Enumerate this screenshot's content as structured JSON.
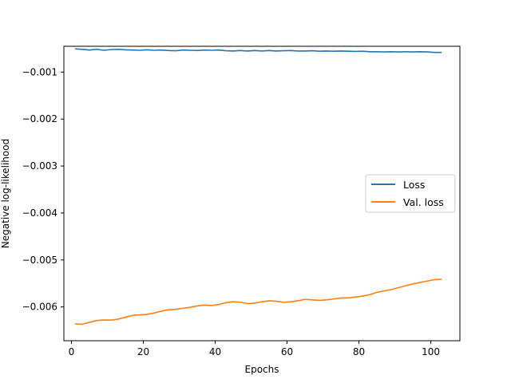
{
  "chart_data": {
    "type": "line",
    "title": "",
    "xlabel": "Epochs",
    "ylabel": "Negative log-likelihood",
    "xlim": [
      -2.1,
      108.1
    ],
    "ylim": [
      -0.00672,
      -0.00045
    ],
    "xticks": [
      0,
      20,
      40,
      60,
      80,
      100
    ],
    "xtick_labels": [
      "0",
      "20",
      "40",
      "60",
      "80",
      "100"
    ],
    "yticks": [
      -0.001,
      -0.002,
      -0.003,
      -0.004,
      -0.005,
      -0.006
    ],
    "ytick_labels": [
      "−0.001",
      "−0.002",
      "−0.003",
      "−0.004",
      "−0.005",
      "−0.006"
    ],
    "grid": false,
    "legend_position": "center-right",
    "series": [
      {
        "name": "Loss",
        "color": "#1f77b4",
        "x": [
          1,
          3,
          5,
          7,
          9,
          11,
          13,
          15,
          17,
          19,
          21,
          23,
          25,
          27,
          29,
          31,
          33,
          35,
          37,
          39,
          41,
          43,
          45,
          47,
          49,
          51,
          53,
          55,
          57,
          59,
          61,
          63,
          65,
          67,
          69,
          71,
          73,
          75,
          77,
          79,
          81,
          83,
          85,
          87,
          89,
          91,
          93,
          95,
          97,
          99,
          101,
          103
        ],
        "y": [
          -0.000505,
          -0.000515,
          -0.00053,
          -0.000515,
          -0.000535,
          -0.00052,
          -0.000515,
          -0.000525,
          -0.00053,
          -0.000535,
          -0.000525,
          -0.000535,
          -0.00053,
          -0.00054,
          -0.000545,
          -0.00053,
          -0.000535,
          -0.00054,
          -0.00053,
          -0.000535,
          -0.00053,
          -0.000545,
          -0.00055,
          -0.00054,
          -0.00055,
          -0.00054,
          -0.00055,
          -0.00054,
          -0.00055,
          -0.000545,
          -0.00054,
          -0.00055,
          -0.00055,
          -0.000545,
          -0.000555,
          -0.00055,
          -0.000555,
          -0.00055,
          -0.000555,
          -0.00056,
          -0.000555,
          -0.000565,
          -0.000565,
          -0.00057,
          -0.000565,
          -0.00057,
          -0.000565,
          -0.00057,
          -0.000565,
          -0.00057,
          -0.00058,
          -0.00058
        ]
      },
      {
        "name": "Val. loss",
        "color": "#ff7f0e",
        "x": [
          1,
          3,
          5,
          7,
          9,
          11,
          13,
          15,
          17,
          19,
          21,
          23,
          25,
          27,
          29,
          31,
          33,
          35,
          37,
          39,
          41,
          43,
          45,
          47,
          49,
          51,
          53,
          55,
          57,
          59,
          61,
          63,
          65,
          67,
          69,
          71,
          73,
          75,
          77,
          79,
          81,
          83,
          85,
          87,
          89,
          91,
          93,
          95,
          97,
          99,
          101,
          103
        ],
        "y": [
          -0.00636,
          -0.00637,
          -0.00633,
          -0.00629,
          -0.00628,
          -0.00628,
          -0.00626,
          -0.00622,
          -0.00618,
          -0.00617,
          -0.00616,
          -0.00613,
          -0.00609,
          -0.00606,
          -0.00605,
          -0.00603,
          -0.00601,
          -0.00598,
          -0.00596,
          -0.00597,
          -0.00595,
          -0.00591,
          -0.00589,
          -0.0059,
          -0.00593,
          -0.00592,
          -0.00589,
          -0.00587,
          -0.00588,
          -0.0059,
          -0.00589,
          -0.00587,
          -0.00584,
          -0.00585,
          -0.00586,
          -0.00585,
          -0.00583,
          -0.00581,
          -0.00581,
          -0.00579,
          -0.00577,
          -0.00574,
          -0.00569,
          -0.00566,
          -0.00563,
          -0.00559,
          -0.00555,
          -0.00551,
          -0.00548,
          -0.00545,
          -0.00542,
          -0.00541
        ]
      }
    ]
  }
}
